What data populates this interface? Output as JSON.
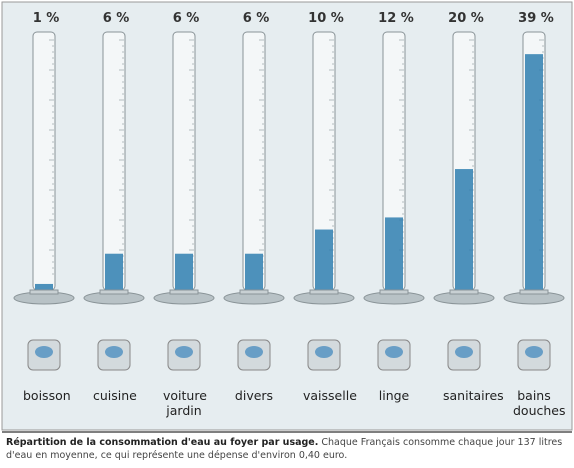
{
  "chart_data": {
    "type": "tube",
    "categories": [
      "boisson",
      "cuisine",
      "voiture jardin",
      "divers",
      "vaisselle",
      "linge",
      "sanitaires",
      "bains douches"
    ],
    "values": [
      1,
      6,
      6,
      6,
      10,
      12,
      20,
      39
    ],
    "value_labels": [
      "1 %",
      "6 %",
      "6 %",
      "6 %",
      "10 %",
      "12 %",
      "20 %",
      "39 %"
    ],
    "ylim": [
      0,
      42
    ],
    "color": "#2f7fb0"
  },
  "caption": {
    "title": "Répartition de la consommation d'eau au foyer par usage.",
    "text": "Chaque Français consomme chaque jour 137 litres d'eau en moyenne, ce qui représente une dépense d'environ 0,40 euro."
  }
}
